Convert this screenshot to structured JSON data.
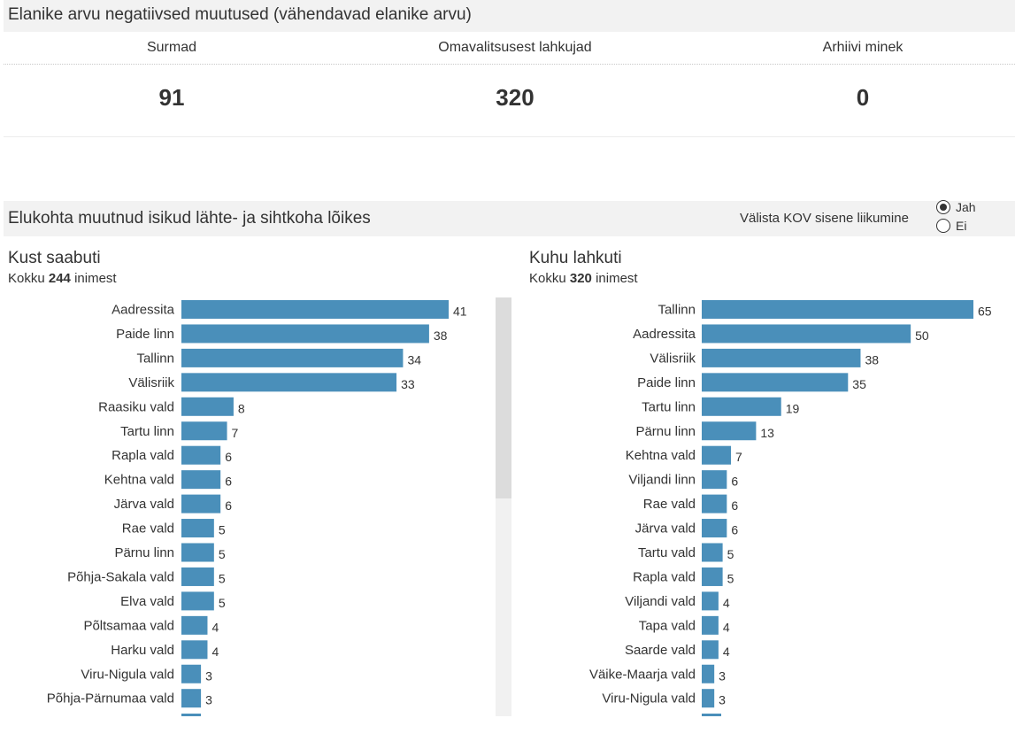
{
  "section1": {
    "title": "Elanike arvu negatiivsed muutused (vähendavad elanike arvu)"
  },
  "kpis": [
    {
      "label": "Surmad",
      "value": "91"
    },
    {
      "label": "Omavalitsusest lahkujad",
      "value": "320"
    },
    {
      "label": "Arhiivi minek",
      "value": "0"
    }
  ],
  "section2": {
    "title": "Elukohta muutnud isikud lähte- ja sihtkoha lõikes"
  },
  "toggle": {
    "label": "Välista KOV sisene liikumine",
    "options": [
      "Jah",
      "Ei"
    ],
    "selected": "Jah"
  },
  "left": {
    "title": "Kust saabuti",
    "total_prefix": "Kokku",
    "total": "244",
    "total_suffix": "inimest"
  },
  "right": {
    "title": "Kuhu lahkuti",
    "total_prefix": "Kokku",
    "total": "320",
    "total_suffix": "inimest"
  },
  "colors": {
    "bar": "#4a8fba",
    "header_bg": "#f2f2f2"
  },
  "chart_data": [
    {
      "type": "bar",
      "orientation": "horizontal",
      "title": "Kust saabuti",
      "categories": [
        "Aadressita",
        "Paide linn",
        "Tallinn",
        "Välisriik",
        "Raasiku vald",
        "Tartu linn",
        "Rapla vald",
        "Kehtna vald",
        "Järva vald",
        "Rae vald",
        "Pärnu linn",
        "Põhja-Sakala vald",
        "Elva vald",
        "Põltsamaa vald",
        "Harku vald",
        "Viru-Nigula vald",
        "Põhja-Pärnumaa vald"
      ],
      "values": [
        41,
        38,
        34,
        33,
        8,
        7,
        6,
        6,
        6,
        5,
        5,
        5,
        5,
        4,
        4,
        3,
        3
      ],
      "xlim": [
        0,
        41
      ]
    },
    {
      "type": "bar",
      "orientation": "horizontal",
      "title": "Kuhu lahkuti",
      "categories": [
        "Tallinn",
        "Aadressita",
        "Välisriik",
        "Paide linn",
        "Tartu linn",
        "Pärnu linn",
        "Kehtna vald",
        "Viljandi linn",
        "Rae vald",
        "Järva vald",
        "Tartu vald",
        "Rapla vald",
        "Viljandi vald",
        "Tapa vald",
        "Saarde vald",
        "Väike-Maarja vald",
        "Viru-Nigula vald"
      ],
      "values": [
        65,
        50,
        38,
        35,
        19,
        13,
        7,
        6,
        6,
        6,
        5,
        5,
        4,
        4,
        4,
        3,
        3
      ],
      "xlim": [
        0,
        65
      ]
    }
  ]
}
